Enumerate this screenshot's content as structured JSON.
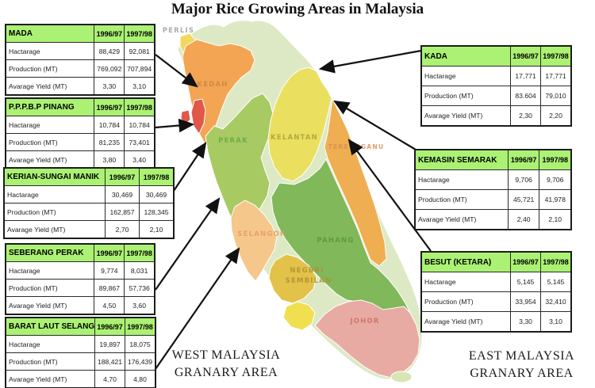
{
  "title": "Major Rice Growing Areas in Malaysia",
  "row_labels": [
    "Hactarage",
    "Production (MT)",
    "Avarage Yield (MT)"
  ],
  "year_headers": [
    "1996/97",
    "1997/98"
  ],
  "tables": [
    {
      "name": "MADA",
      "region": "west",
      "rows": [
        [
          "88,429",
          "92,081"
        ],
        [
          "769,092",
          "707,894"
        ],
        [
          "3,30",
          "3,10"
        ]
      ]
    },
    {
      "name": "P.P.P.B.P PINANG",
      "region": "west",
      "rows": [
        [
          "10,784",
          "10,784"
        ],
        [
          "81,235",
          "73,401"
        ],
        [
          "3,80",
          "3,40"
        ]
      ]
    },
    {
      "name": "KERIAN-SUNGAI MANIK",
      "region": "west",
      "rows": [
        [
          "30,469",
          "30,469"
        ],
        [
          "162,857",
          "128,345"
        ],
        [
          "2,70",
          "2,10"
        ]
      ]
    },
    {
      "name": "SEBERANG PERAK",
      "region": "west",
      "rows": [
        [
          "9,774",
          "8,031"
        ],
        [
          "89,867",
          "57,736"
        ],
        [
          "4,50",
          "3,60"
        ]
      ]
    },
    {
      "name": "BARAT LAUT SELANGOR",
      "region": "west",
      "rows": [
        [
          "19,897",
          "18,075"
        ],
        [
          "188,421",
          "176,439"
        ],
        [
          "4,70",
          "4,80"
        ]
      ]
    },
    {
      "name": "KADA",
      "region": "east",
      "rows": [
        [
          "17,771",
          "17,771"
        ],
        [
          "83.604",
          "79,010"
        ],
        [
          "2,30",
          "2,20"
        ]
      ]
    },
    {
      "name": "KEMASIN  SEMARAK",
      "region": "east",
      "rows": [
        [
          "9,706",
          "9,706"
        ],
        [
          "45,721",
          "41,978"
        ],
        [
          "2,40",
          "2,10"
        ]
      ]
    },
    {
      "name": "BESUT (KETARA)",
      "region": "east",
      "rows": [
        [
          "5,145",
          "5,145"
        ],
        [
          "33,954",
          "32,410"
        ],
        [
          "3,30",
          "3,10"
        ]
      ]
    }
  ],
  "captions": {
    "west_line1": "WEST MALAYSIA",
    "west_line2": "GRANARY AREA",
    "east_line1": "EAST MALAYSIA",
    "east_line2": "GRANARY AREA"
  },
  "map": {
    "state_labels": {
      "perlis": "PERLIS",
      "kedah": "KEDAH",
      "perak": "PERAK",
      "kelantan": "KELANTAN",
      "terengganu": "TERENGGANU",
      "selangor": "SELANGOR",
      "pahang": "PAHANG",
      "negeri_line1": "NEGBRI",
      "negeri_line2": "SEMBILAN",
      "johor": "JOHOR"
    },
    "colors": {
      "base": "#dde9c4",
      "perlis": "#f0d95c",
      "kedah": "#f3a553",
      "penang": "#e15849",
      "perak": "#a8ca62",
      "kelantan": "#ebdf60",
      "terengganu": "#eeae51",
      "selangor": "#f5c78b",
      "pahang": "#80b85a",
      "negeri_sembilan": "#e2c249",
      "malacca": "#f0e050",
      "johor": "#e7aba3",
      "south_tip": "#d8e6b4"
    }
  },
  "colors": {
    "table_header_green": "#abf173",
    "arrow_black": "#111111"
  }
}
